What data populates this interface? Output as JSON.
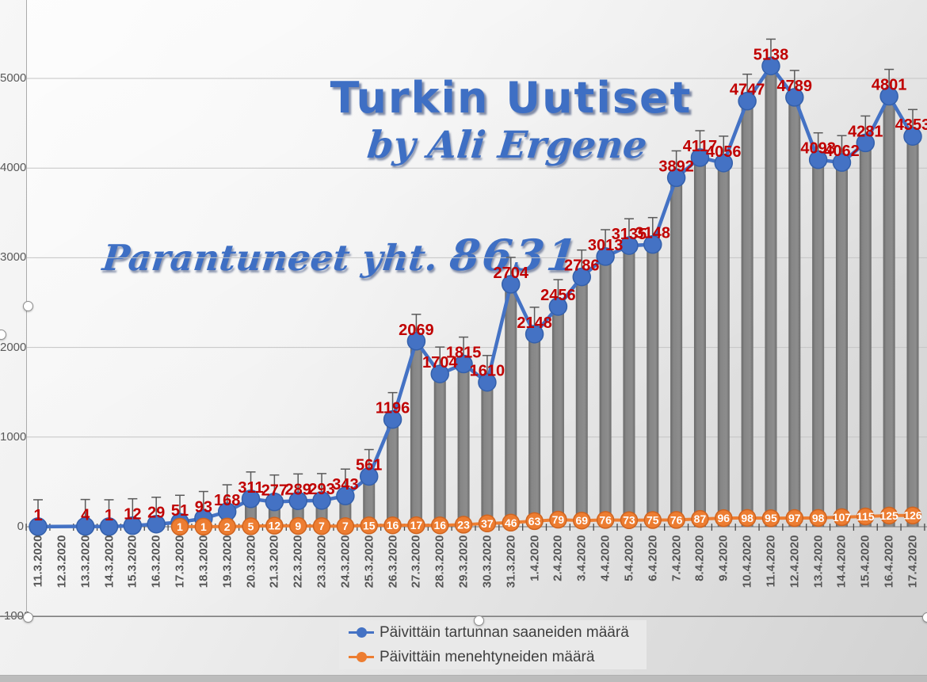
{
  "chart": {
    "title": "Turkin Uutiset",
    "subtitle": "by Ali Ergene",
    "annotation_text": "Parantuneet yht. ",
    "annotation_value": "8631",
    "colors": {
      "accent_blue": "#4472c4",
      "accent_blue_dark": "#3460ab",
      "accent_orange": "#ed7d31",
      "accent_orange_dark": "#cf6420",
      "data_label_red": "#c00000",
      "bar_gray": "#7b7b7b",
      "title_blue": "#3e6fc4"
    }
  },
  "chart_data": {
    "type": "line",
    "title": "Turkin Uutiset",
    "subtitle": "by Ali Ergene",
    "annotation": "Parantuneet yht. 8631",
    "categories": [
      "11.3.2020",
      "12.3.2020",
      "13.3.2020",
      "14.3.2020",
      "15.3.2020",
      "16.3.2020",
      "17.3.2020",
      "18.3.2020",
      "19.3.2020",
      "20.3.2020",
      "21.3.2020",
      "22.3.2020",
      "23.3.2020",
      "24.3.2020",
      "25.3.2020",
      "26.3.2020",
      "27.3.2020",
      "28.3.2020",
      "29.3.2020",
      "30.3.2020",
      "31.3.2020",
      "1.4.2020",
      "2.4.2020",
      "3.4.2020",
      "4.4.2020",
      "5.4.2020",
      "6.4.2020",
      "7.4.2020",
      "8.4.2020",
      "9.4.2020",
      "10.4.2020",
      "11.4.2020",
      "12.4.2020",
      "13.4.2020",
      "14.4.2020",
      "15.4.2020",
      "16.4.2020",
      "17.4.2020"
    ],
    "series": [
      {
        "name": "Päivittäin tartunnan saaneiden määrä",
        "type": "line+column",
        "color": "#4472c4",
        "label_color": "#c00000",
        "values": [
          1,
          null,
          4,
          1,
          12,
          29,
          51,
          93,
          168,
          311,
          277,
          289,
          293,
          343,
          561,
          1196,
          2069,
          1704,
          1815,
          1610,
          2704,
          2148,
          2456,
          2786,
          3013,
          3135,
          3148,
          3892,
          4117,
          4056,
          4747,
          5138,
          4789,
          4093,
          4062,
          4281,
          4801,
          4353
        ]
      },
      {
        "name": "Päivittäin menehtyneiden määrä",
        "type": "line",
        "color": "#ed7d31",
        "label_color": "#ffffff",
        "values": [
          null,
          null,
          null,
          null,
          null,
          null,
          1,
          1,
          2,
          5,
          12,
          9,
          7,
          7,
          15,
          16,
          17,
          16,
          23,
          37,
          46,
          63,
          79,
          69,
          76,
          73,
          75,
          76,
          87,
          96,
          98,
          95,
          97,
          98,
          107,
          115,
          125,
          126
        ]
      }
    ],
    "y_ticks": [
      5000,
      4000,
      3000,
      2000,
      1000,
      0,
      -1000
    ],
    "ylim": [
      -1000,
      5500
    ],
    "error_bar_units": 300,
    "grid": true,
    "legend_position": "bottom"
  }
}
